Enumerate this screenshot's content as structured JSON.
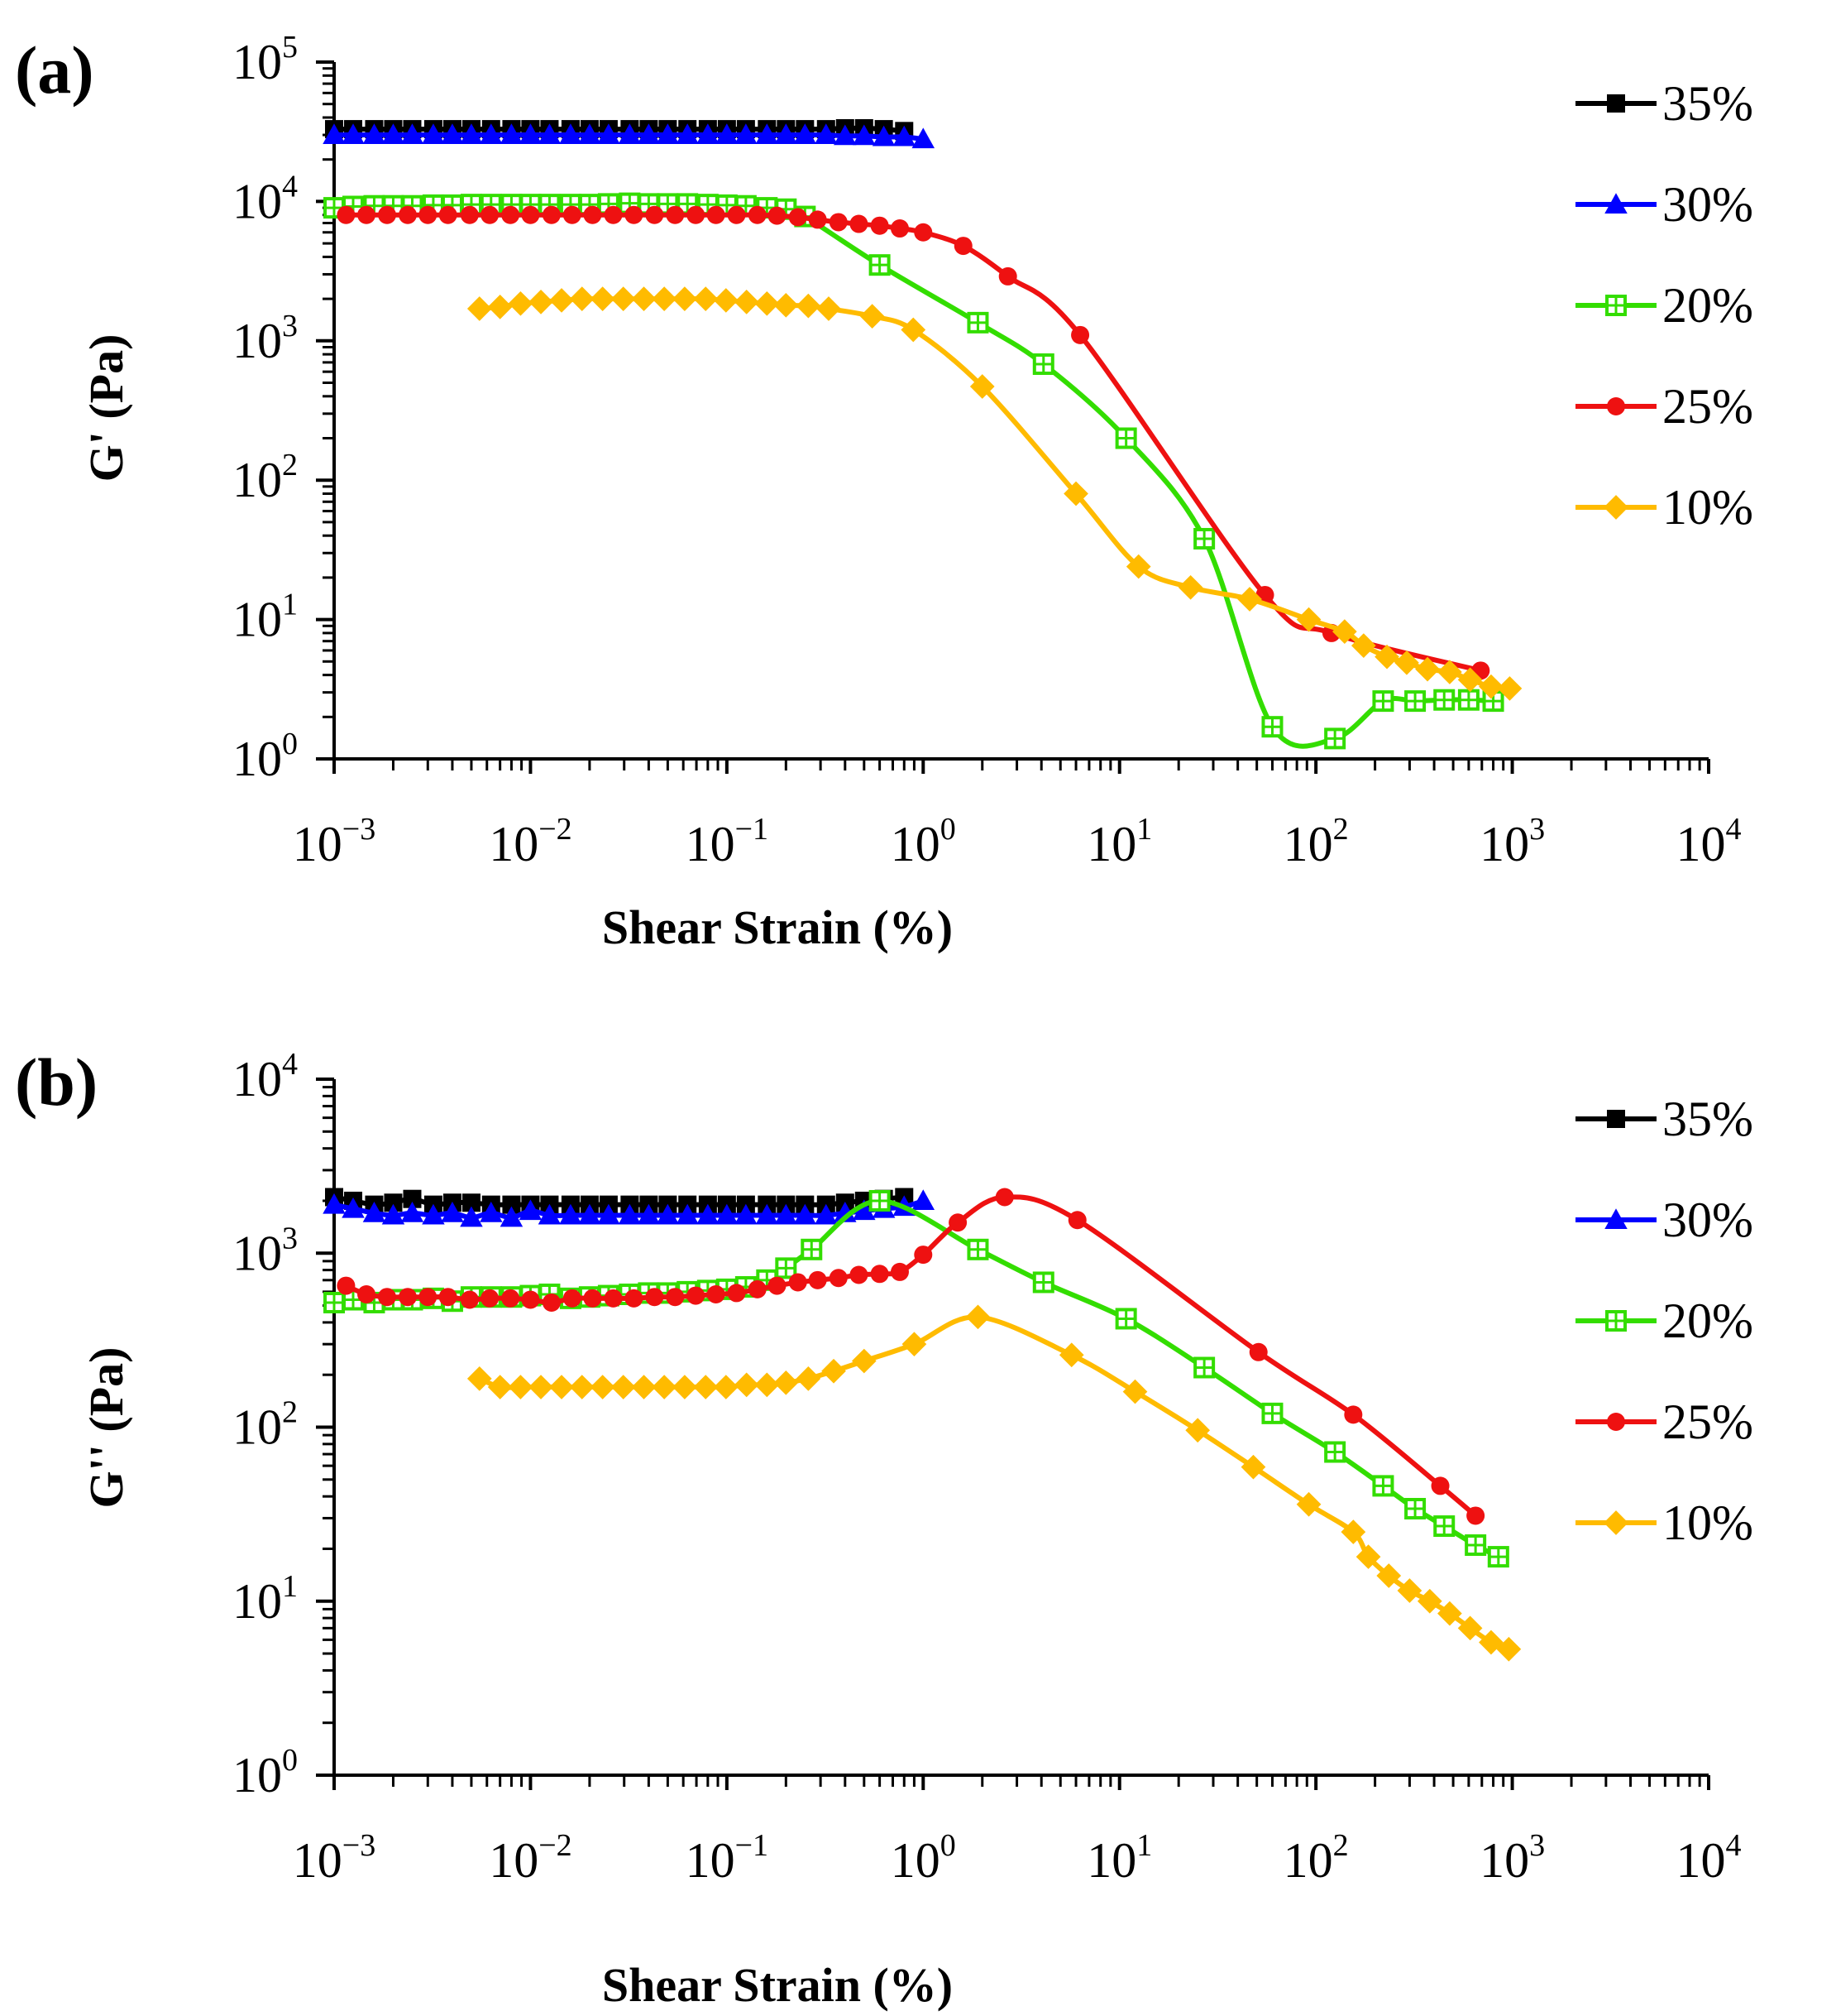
{
  "chart_data": [
    {
      "type": "line",
      "panel_label": "(a)",
      "xlabel": "Shear Strain (%)",
      "ylabel": "G' (Pa)",
      "x_scale": "log",
      "y_scale": "log",
      "xlim": [
        0.001,
        10000
      ],
      "ylim": [
        1,
        100000
      ],
      "x_ticks": [
        0.001,
        0.01,
        0.1,
        1,
        10,
        100,
        1000,
        10000
      ],
      "x_tick_labels": [
        {
          "base": "10",
          "exp": "−3"
        },
        {
          "base": "10",
          "exp": "−2"
        },
        {
          "base": "10",
          "exp": "−1"
        },
        {
          "base": "10",
          "exp": "0"
        },
        {
          "base": "10",
          "exp": "1"
        },
        {
          "base": "10",
          "exp": "2"
        },
        {
          "base": "10",
          "exp": "3"
        },
        {
          "base": "10",
          "exp": "4"
        }
      ],
      "y_ticks": [
        1,
        10,
        100,
        1000,
        10000,
        100000
      ],
      "y_tick_labels": [
        {
          "base": "10",
          "exp": "0"
        },
        {
          "base": "10",
          "exp": "1"
        },
        {
          "base": "10",
          "exp": "2"
        },
        {
          "base": "10",
          "exp": "3"
        },
        {
          "base": "10",
          "exp": "4"
        },
        {
          "base": "10",
          "exp": "5"
        }
      ],
      "grid": false,
      "legend_position": "right",
      "series": [
        {
          "name": "35%",
          "color": "#000000",
          "marker": "square",
          "x": [
            0.001,
            0.00125,
            0.0016,
            0.002,
            0.0025,
            0.0032,
            0.004,
            0.005,
            0.0063,
            0.008,
            0.01,
            0.0125,
            0.016,
            0.02,
            0.025,
            0.032,
            0.04,
            0.05,
            0.063,
            0.08,
            0.1,
            0.125,
            0.16,
            0.2,
            0.25,
            0.32,
            0.4,
            0.5,
            0.63,
            0.8
          ],
          "y": [
            33000,
            33000,
            33000,
            33000,
            33000,
            33000,
            33000,
            33000,
            33000,
            33000,
            33000,
            33000,
            33000,
            33000,
            33000,
            33000,
            33000,
            33000,
            33000,
            33000,
            33000,
            33000,
            33000,
            33000,
            33000,
            33000,
            33500,
            33500,
            33000,
            32000
          ]
        },
        {
          "name": "30%",
          "color": "#0000ff",
          "marker": "triangle",
          "x": [
            0.001,
            0.00125,
            0.0016,
            0.002,
            0.0025,
            0.0032,
            0.004,
            0.005,
            0.0063,
            0.008,
            0.01,
            0.0125,
            0.016,
            0.02,
            0.025,
            0.032,
            0.04,
            0.05,
            0.063,
            0.08,
            0.1,
            0.125,
            0.16,
            0.2,
            0.25,
            0.32,
            0.4,
            0.5,
            0.63,
            0.8,
            1.0
          ],
          "y": [
            30000,
            30000,
            30000,
            30000,
            30000,
            30000,
            30000,
            30000,
            30000,
            30000,
            30000,
            30000,
            30000,
            30000,
            30000,
            30000,
            30000,
            30000,
            30000,
            30000,
            30000,
            30000,
            30000,
            30000,
            30000,
            30000,
            29500,
            29500,
            29000,
            29000,
            28000
          ]
        },
        {
          "name": "20%",
          "color": "#33dd00",
          "marker": "square-open",
          "x": [
            0.001,
            0.00125,
            0.0016,
            0.002,
            0.0025,
            0.0032,
            0.004,
            0.005,
            0.0063,
            0.008,
            0.01,
            0.0125,
            0.016,
            0.02,
            0.025,
            0.032,
            0.04,
            0.05,
            0.063,
            0.08,
            0.1,
            0.125,
            0.16,
            0.2,
            0.25,
            0.6,
            1.9,
            4.1,
            10.8,
            27,
            60,
            125,
            220,
            320,
            450,
            600,
            800
          ],
          "y": [
            9000,
            9200,
            9300,
            9300,
            9300,
            9400,
            9400,
            9500,
            9500,
            9500,
            9500,
            9500,
            9500,
            9500,
            9600,
            9700,
            9600,
            9600,
            9600,
            9500,
            9400,
            9300,
            9000,
            8800,
            7800,
            3500,
            1350,
            680,
            200,
            38,
            1.7,
            1.4,
            2.6,
            2.6,
            2.65,
            2.65,
            2.6
          ]
        },
        {
          "name": "25%",
          "color": "#ee1111",
          "marker": "circle",
          "x": [
            0.00115,
            0.00146,
            0.00186,
            0.00237,
            0.003,
            0.0038,
            0.0049,
            0.0062,
            0.0079,
            0.01,
            0.0128,
            0.0163,
            0.0207,
            0.0264,
            0.0336,
            0.0428,
            0.0545,
            0.0694,
            0.088,
            0.112,
            0.143,
            0.18,
            0.23,
            0.29,
            0.37,
            0.47,
            0.6,
            0.76,
            1.0,
            1.6,
            2.7,
            6.3,
            55,
            120,
            690
          ],
          "y": [
            8000,
            8000,
            8000,
            8000,
            8000,
            8000,
            8000,
            8000,
            8000,
            8000,
            8000,
            8000,
            8000,
            8000,
            8000,
            8000,
            8000,
            8000,
            8000,
            8000,
            8000,
            7900,
            7700,
            7400,
            7100,
            6900,
            6700,
            6400,
            6000,
            4800,
            2900,
            1100,
            15,
            8,
            4.3
          ]
        },
        {
          "name": "10%",
          "color": "#ffbb00",
          "marker": "diamond",
          "x": [
            0.0055,
            0.007,
            0.0089,
            0.0113,
            0.0144,
            0.0183,
            0.0233,
            0.0297,
            0.0378,
            0.048,
            0.061,
            0.078,
            0.099,
            0.126,
            0.16,
            0.2,
            0.26,
            0.33,
            0.55,
            0.89,
            2.0,
            6.0,
            12.5,
            23,
            46,
            92,
            140,
            175,
            230,
            290,
            370,
            480,
            610,
            780,
            970
          ],
          "y": [
            1700,
            1750,
            1850,
            1900,
            1950,
            2000,
            2000,
            2000,
            2000,
            2000,
            2000,
            2000,
            1950,
            1900,
            1850,
            1800,
            1780,
            1700,
            1500,
            1200,
            470,
            80,
            24,
            17,
            14,
            10,
            8.2,
            6.5,
            5.4,
            4.9,
            4.4,
            4.2,
            3.7,
            3.3,
            3.2
          ]
        }
      ]
    },
    {
      "type": "line",
      "panel_label": "(b)",
      "xlabel": "Shear Strain (%)",
      "ylabel": "G'' (Pa)",
      "x_scale": "log",
      "y_scale": "log",
      "xlim": [
        0.001,
        10000
      ],
      "ylim": [
        1,
        10000
      ],
      "x_ticks": [
        0.001,
        0.01,
        0.1,
        1,
        10,
        100,
        1000,
        10000
      ],
      "x_tick_labels": [
        {
          "base": "10",
          "exp": "−3"
        },
        {
          "base": "10",
          "exp": "−2"
        },
        {
          "base": "10",
          "exp": "−1"
        },
        {
          "base": "10",
          "exp": "0"
        },
        {
          "base": "10",
          "exp": "1"
        },
        {
          "base": "10",
          "exp": "2"
        },
        {
          "base": "10",
          "exp": "3"
        },
        {
          "base": "10",
          "exp": "4"
        }
      ],
      "y_ticks": [
        1,
        10,
        100,
        1000,
        10000
      ],
      "y_tick_labels": [
        {
          "base": "10",
          "exp": "0"
        },
        {
          "base": "10",
          "exp": "1"
        },
        {
          "base": "10",
          "exp": "2"
        },
        {
          "base": "10",
          "exp": "3"
        },
        {
          "base": "10",
          "exp": "4"
        }
      ],
      "grid": false,
      "legend_position": "right",
      "series": [
        {
          "name": "35%",
          "color": "#000000",
          "marker": "square",
          "x": [
            0.001,
            0.00125,
            0.0016,
            0.002,
            0.0025,
            0.0032,
            0.004,
            0.005,
            0.0063,
            0.008,
            0.01,
            0.0125,
            0.016,
            0.02,
            0.025,
            0.032,
            0.04,
            0.05,
            0.063,
            0.08,
            0.1,
            0.125,
            0.16,
            0.2,
            0.25,
            0.32,
            0.4,
            0.5,
            0.63,
            0.8
          ],
          "y": [
            2100,
            2000,
            1900,
            1950,
            2050,
            1900,
            1950,
            1950,
            1900,
            1900,
            1900,
            1900,
            1900,
            1900,
            1900,
            1900,
            1900,
            1900,
            1900,
            1900,
            1900,
            1900,
            1900,
            1900,
            1900,
            1900,
            1950,
            2000,
            2050,
            2100
          ]
        },
        {
          "name": "30%",
          "color": "#0000ff",
          "marker": "triangle",
          "x": [
            0.001,
            0.00125,
            0.0016,
            0.002,
            0.0025,
            0.0032,
            0.004,
            0.005,
            0.0063,
            0.008,
            0.01,
            0.0125,
            0.016,
            0.02,
            0.025,
            0.032,
            0.04,
            0.05,
            0.063,
            0.08,
            0.1,
            0.125,
            0.16,
            0.2,
            0.25,
            0.32,
            0.4,
            0.5,
            0.63,
            0.8,
            1.0
          ],
          "y": [
            1900,
            1800,
            1700,
            1650,
            1700,
            1650,
            1700,
            1600,
            1700,
            1600,
            1750,
            1650,
            1650,
            1650,
            1650,
            1650,
            1650,
            1650,
            1650,
            1650,
            1650,
            1650,
            1650,
            1650,
            1650,
            1650,
            1700,
            1750,
            1800,
            1850,
            2000
          ]
        },
        {
          "name": "20%",
          "color": "#33dd00",
          "marker": "square-open",
          "x": [
            0.001,
            0.00125,
            0.0016,
            0.002,
            0.0025,
            0.0032,
            0.004,
            0.005,
            0.0063,
            0.008,
            0.01,
            0.0125,
            0.016,
            0.02,
            0.025,
            0.032,
            0.04,
            0.05,
            0.063,
            0.08,
            0.1,
            0.125,
            0.16,
            0.2,
            0.27,
            0.6,
            1.9,
            4.1,
            10.8,
            27,
            60,
            125,
            220,
            320,
            450,
            650,
            850
          ],
          "y": [
            520,
            540,
            520,
            540,
            540,
            550,
            530,
            560,
            560,
            560,
            570,
            580,
            550,
            560,
            570,
            580,
            590,
            590,
            600,
            610,
            620,
            640,
            700,
            820,
            1050,
            2000,
            1050,
            680,
            420,
            220,
            120,
            72,
            46,
            34,
            27,
            21,
            18
          ]
        },
        {
          "name": "25%",
          "color": "#ee1111",
          "marker": "circle",
          "x": [
            0.00115,
            0.00146,
            0.00186,
            0.00237,
            0.003,
            0.0038,
            0.0049,
            0.0062,
            0.0079,
            0.01,
            0.0128,
            0.0163,
            0.0207,
            0.0264,
            0.0336,
            0.0428,
            0.0545,
            0.0694,
            0.088,
            0.112,
            0.143,
            0.18,
            0.23,
            0.29,
            0.37,
            0.47,
            0.6,
            0.76,
            1.0,
            1.5,
            2.6,
            6.1,
            51,
            155,
            430,
            650
          ],
          "y": [
            650,
            580,
            560,
            560,
            560,
            560,
            540,
            550,
            550,
            540,
            520,
            550,
            550,
            550,
            550,
            560,
            560,
            570,
            580,
            590,
            620,
            650,
            680,
            700,
            720,
            750,
            760,
            780,
            980,
            1500,
            2100,
            1550,
            270,
            118,
            46,
            31
          ]
        },
        {
          "name": "10%",
          "color": "#ffbb00",
          "marker": "diamond",
          "x": [
            0.0055,
            0.007,
            0.0089,
            0.0113,
            0.0144,
            0.0183,
            0.0233,
            0.0297,
            0.0378,
            0.048,
            0.061,
            0.078,
            0.099,
            0.126,
            0.16,
            0.2,
            0.26,
            0.35,
            0.5,
            0.9,
            1.9,
            5.7,
            12,
            25,
            48,
            92,
            155,
            185,
            235,
            300,
            380,
            480,
            610,
            780,
            960
          ],
          "y": [
            190,
            170,
            170,
            170,
            170,
            170,
            170,
            170,
            170,
            170,
            170,
            170,
            170,
            175,
            175,
            180,
            190,
            210,
            240,
            300,
            430,
            260,
            160,
            96,
            59,
            36,
            25,
            18,
            14,
            11.5,
            10,
            8.5,
            7,
            5.8,
            5.3
          ]
        }
      ]
    }
  ]
}
